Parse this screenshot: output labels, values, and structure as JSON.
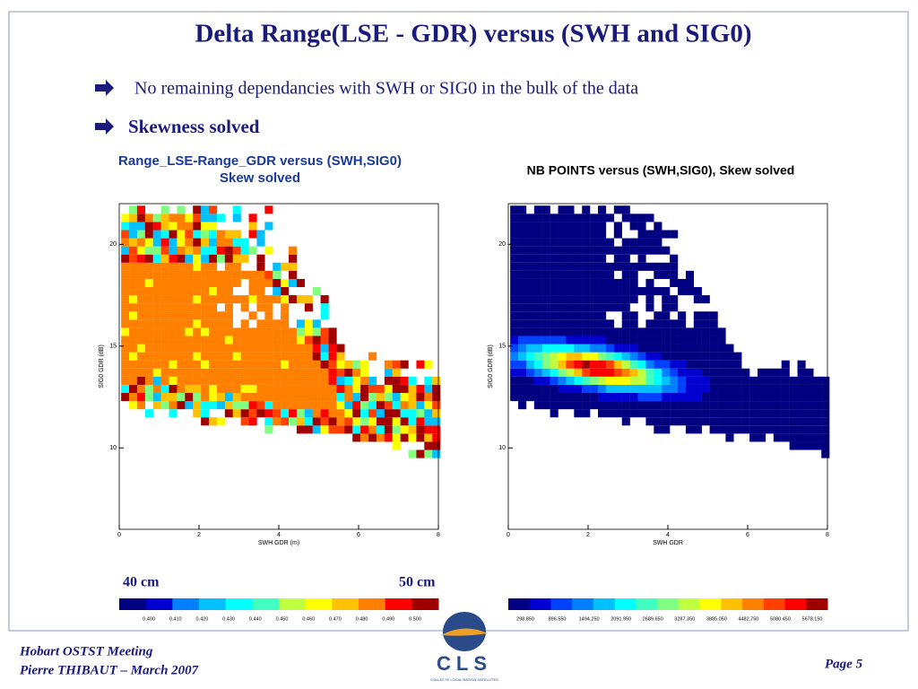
{
  "title": "Delta Range(LSE - GDR) versus (SWH and SIG0)",
  "bullets": [
    "No remaining dependancies with SWH or SIG0 in the bulk of the data",
    "Skewness solved"
  ],
  "plots": [
    {
      "title": [
        "Range_LSE-Range_GDR versus (SWH,SIG0)",
        "Skew solved"
      ],
      "xlabel": "SWH GDR (m)",
      "ylabel": "SIG0 GDR (dB)",
      "xlim": [
        0,
        8
      ],
      "xticks": [
        0,
        2,
        4,
        6,
        8
      ],
      "ylim": [
        6,
        22
      ],
      "yticks": [
        10,
        15,
        20
      ],
      "colorbar_ends": [
        "40 cm",
        "50 cm"
      ],
      "colorbar_labels": [
        "0.400",
        "0.410",
        "0.420",
        "0.430",
        "0.440",
        "0.450",
        "0.460",
        "0.470",
        "0.480",
        "0.490",
        "0.500"
      ]
    },
    {
      "title": [
        "NB POINTS versus (SWH,SIG0), Skew solved"
      ],
      "xlabel": "SWH GDR",
      "ylabel": "SIG0 GDR (dB)",
      "xlim": [
        0,
        8
      ],
      "xticks": [
        0,
        2,
        4,
        6,
        8
      ],
      "ylim": [
        6,
        22
      ],
      "yticks": [
        10,
        15,
        20
      ],
      "colorbar_labels": [
        "298.850",
        "896.550",
        "1494.250",
        "2091.950",
        "2689.650",
        "3287.350",
        "3885.050",
        "4482.750",
        "5080.450",
        "5678.150"
      ]
    }
  ],
  "footer": {
    "lines": [
      "Hobart OSTST Meeting",
      "Pierre THIBAUT – March 2007"
    ],
    "page": "Page 5",
    "logo": "CLS",
    "logo_sub": "COLLECTE LOCALISATION SATELLITES"
  },
  "palette": [
    "#000080",
    "#0000d0",
    "#0040ff",
    "#0080ff",
    "#00c0ff",
    "#00ffff",
    "#40ffc0",
    "#80ff80",
    "#c0ff40",
    "#ffff00",
    "#ffc000",
    "#ff8000",
    "#ff4000",
    "#ff0000",
    "#a00000"
  ]
}
